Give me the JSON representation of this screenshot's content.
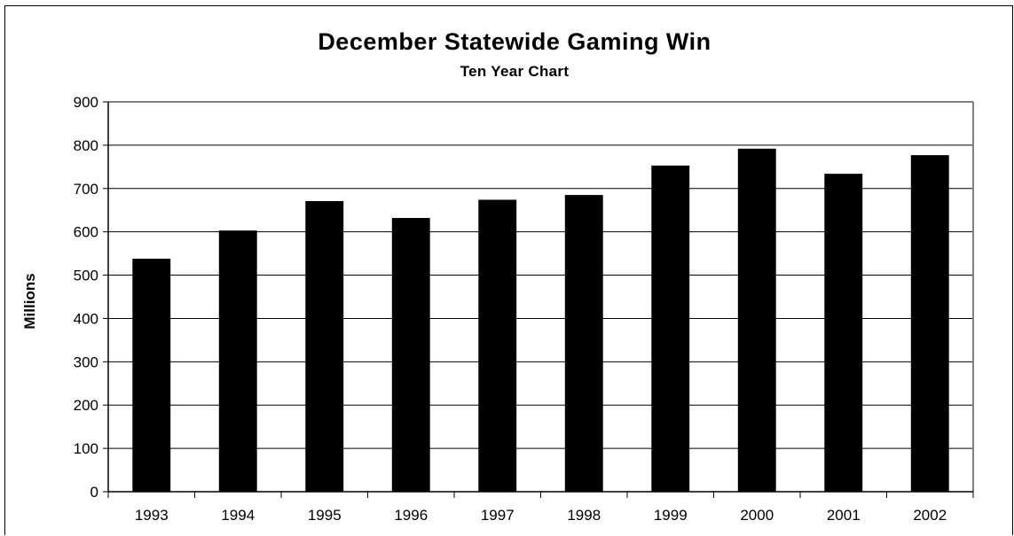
{
  "chart_data": {
    "type": "bar",
    "title": "December Statewide Gaming Win",
    "subtitle": "Ten Year Chart",
    "xlabel": "",
    "ylabel": "Millions",
    "categories": [
      "1993",
      "1994",
      "1995",
      "1996",
      "1997",
      "1998",
      "1999",
      "2000",
      "2001",
      "2002"
    ],
    "values": [
      538,
      603,
      671,
      632,
      674,
      685,
      753,
      792,
      734,
      777
    ],
    "ylim": [
      0,
      900
    ],
    "yticks": [
      "0",
      "100",
      "200",
      "300",
      "400",
      "500",
      "600",
      "700",
      "800",
      "900"
    ],
    "grid": true,
    "legend": "none",
    "colors": {
      "bar": "#000000",
      "grid": "#000000",
      "background": "#ffffff"
    }
  }
}
